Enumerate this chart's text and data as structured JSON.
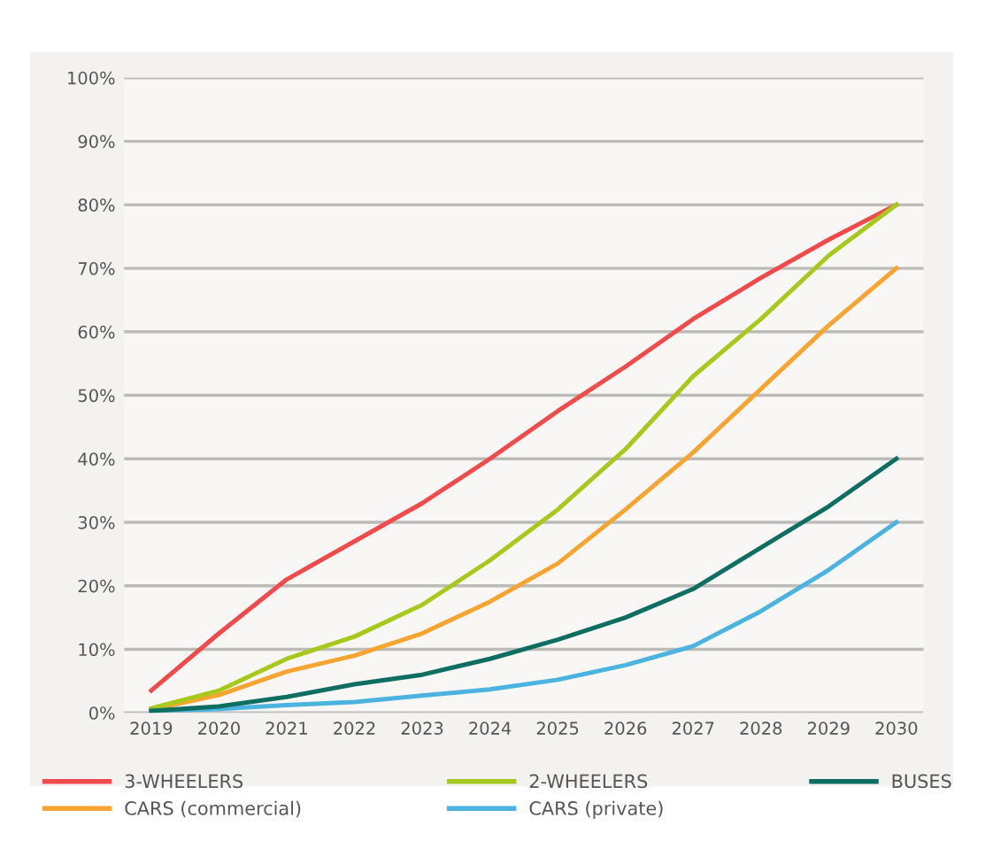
{
  "chart_data": {
    "type": "line",
    "categories": [
      "2019",
      "2020",
      "2021",
      "2022",
      "2023",
      "2024",
      "2025",
      "2026",
      "2027",
      "2028",
      "2029",
      "2030"
    ],
    "series": [
      {
        "name": "3-WHEELERS",
        "color": "#f04a4a",
        "values": [
          3.5,
          12.5,
          21,
          27,
          33,
          40,
          47.5,
          54.5,
          62,
          68.5,
          74.5,
          80
        ]
      },
      {
        "name": "CARS (commercial)",
        "color": "#f7a530",
        "values": [
          0.5,
          2.8,
          6.5,
          9,
          12.5,
          17.5,
          23.5,
          32,
          41,
          51,
          61,
          70
        ]
      },
      {
        "name": "2-WHEELERS",
        "color": "#a6c91c",
        "values": [
          0.7,
          3.5,
          8.5,
          12,
          17,
          24,
          32,
          41.5,
          53,
          62,
          72,
          80
        ]
      },
      {
        "name": "CARS (private)",
        "color": "#4ab3e0",
        "values": [
          0.3,
          0.6,
          1.2,
          1.7,
          2.7,
          3.7,
          5.2,
          7.5,
          10.5,
          16,
          22.5,
          30
        ]
      },
      {
        "name": "BUSES",
        "color": "#0e6e62",
        "values": [
          0.3,
          1,
          2.5,
          4.5,
          6,
          8.5,
          11.5,
          15,
          19.5,
          26,
          32.5,
          40
        ]
      }
    ],
    "ylim": [
      0,
      100
    ],
    "yticks": [
      {
        "value": 0,
        "label": "0%"
      },
      {
        "value": 10,
        "label": "10%"
      },
      {
        "value": 20,
        "label": "20%"
      },
      {
        "value": 30,
        "label": "30%"
      },
      {
        "value": 40,
        "label": "40%"
      },
      {
        "value": 50,
        "label": "50%"
      },
      {
        "value": 60,
        "label": "60%"
      },
      {
        "value": 70,
        "label": "70%"
      },
      {
        "value": 80,
        "label": "80%"
      },
      {
        "value": 90,
        "label": "90%"
      },
      {
        "value": 100,
        "label": "100%"
      }
    ],
    "grid": "y",
    "legend": "bottom",
    "marker": "none",
    "line_style": "solid"
  }
}
